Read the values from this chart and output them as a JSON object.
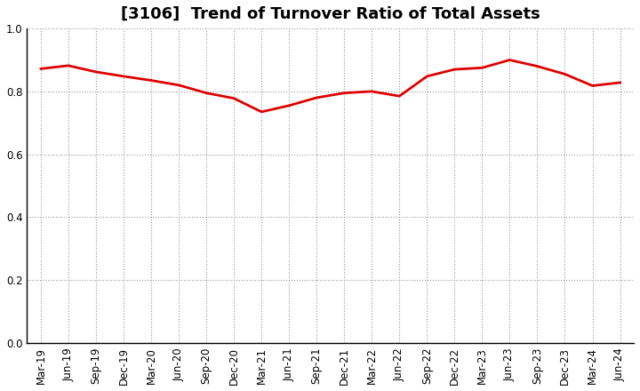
{
  "title": "[3106]  Trend of Turnover Ratio of Total Assets",
  "x_labels": [
    "Mar-19",
    "Jun-19",
    "Sep-19",
    "Dec-19",
    "Mar-20",
    "Jun-20",
    "Sep-20",
    "Dec-20",
    "Mar-21",
    "Jun-21",
    "Sep-21",
    "Dec-21",
    "Mar-22",
    "Jun-22",
    "Sep-22",
    "Dec-22",
    "Mar-23",
    "Jun-23",
    "Sep-23",
    "Dec-23",
    "Mar-24",
    "Jun-24"
  ],
  "values": [
    0.872,
    0.882,
    0.862,
    0.848,
    0.835,
    0.82,
    0.795,
    0.778,
    0.735,
    0.755,
    0.78,
    0.795,
    0.8,
    0.785,
    0.848,
    0.87,
    0.875,
    0.9,
    0.88,
    0.855,
    0.818,
    0.828
  ],
  "line_color": "#dd0000",
  "line_width": 2.0,
  "ylim": [
    0.0,
    1.0
  ],
  "yticks": [
    0.0,
    0.2,
    0.4,
    0.6,
    0.8,
    1.0
  ],
  "grid_color": "#999999",
  "bg_color": "#ffffff",
  "plot_bg_color": "#ffffff",
  "title_fontsize": 13,
  "tick_fontsize": 8.5
}
